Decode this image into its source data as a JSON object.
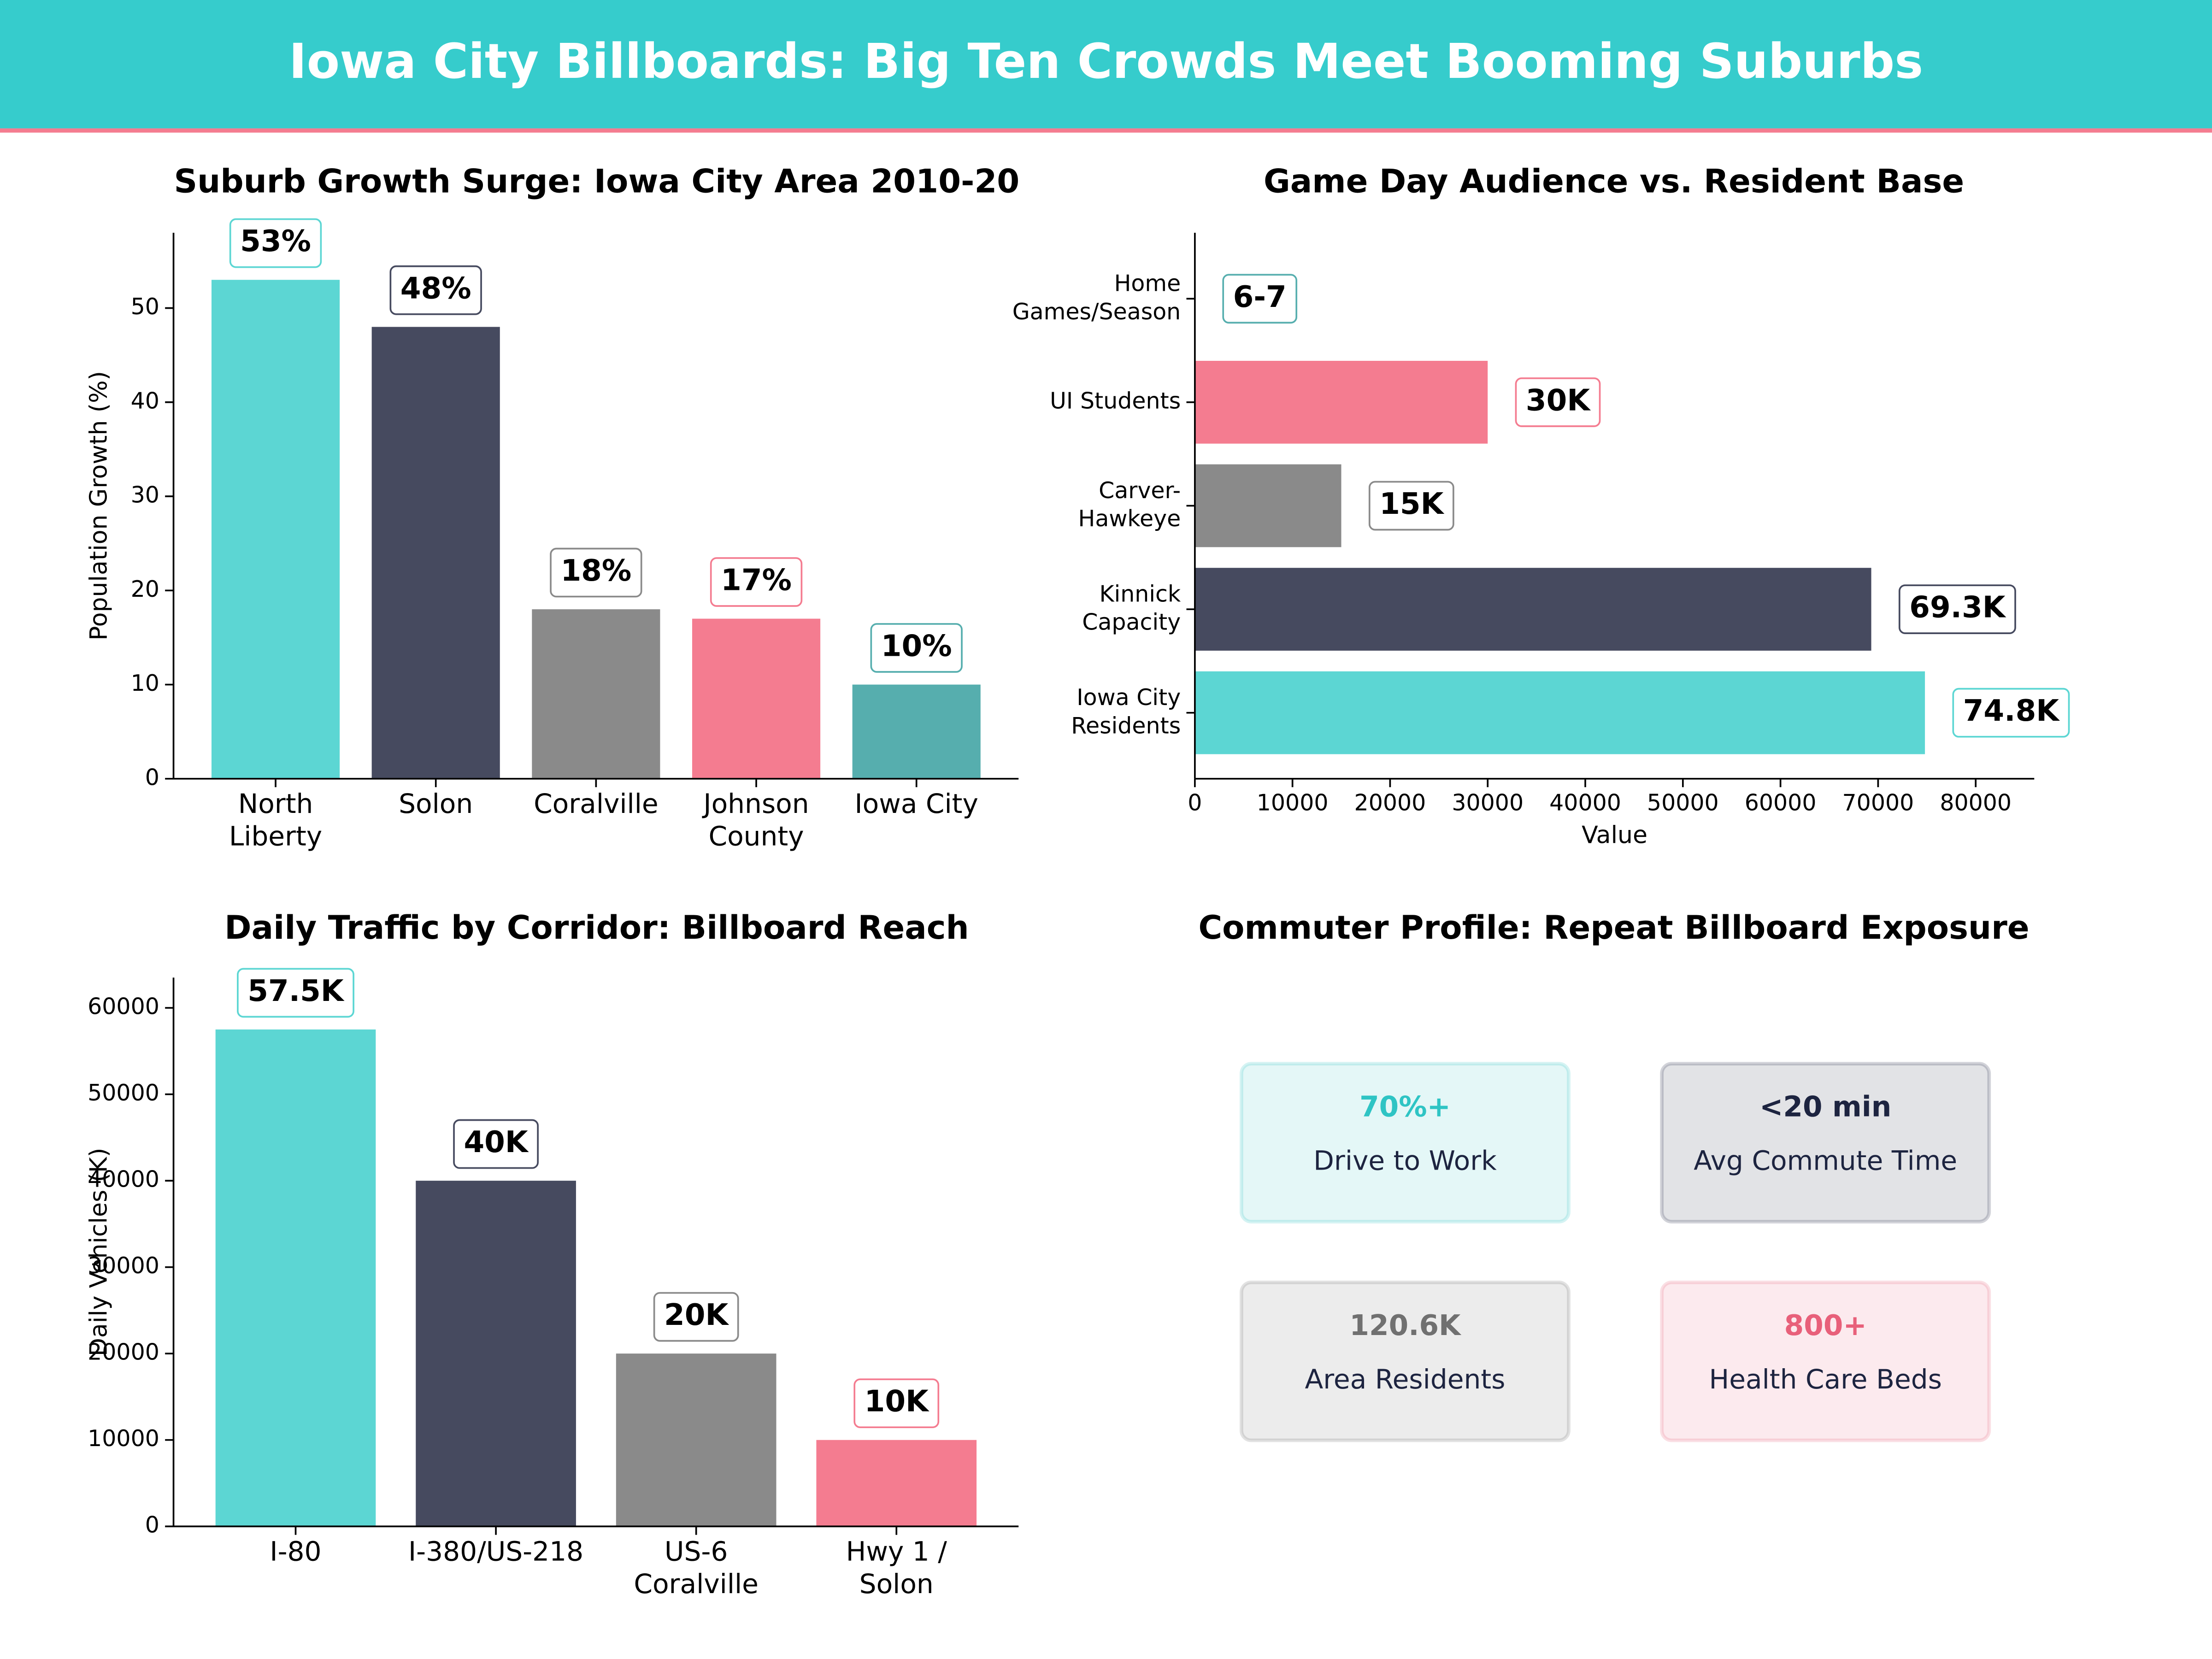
{
  "title": "Iowa City Billboards: Big Ten Crowds Meet Booming Suburbs",
  "chart_data": [
    {
      "type": "bar",
      "title": "Suburb Growth Surge: Iowa City Area 2010-20",
      "categories": [
        "North\nLiberty",
        "Solon",
        "Coralville",
        "Johnson\nCounty",
        "Iowa City"
      ],
      "values": [
        53,
        48,
        18,
        17,
        10
      ],
      "value_labels": [
        "53%",
        "48%",
        "18%",
        "17%",
        "10%"
      ],
      "colors": [
        "#5cd6d3",
        "#464a5f",
        "#8a8a8a",
        "#f47c90",
        "#56aeae"
      ],
      "ylabel": "Population Growth (%)",
      "ylim": [
        0,
        58
      ],
      "yticks": [
        0,
        10,
        20,
        30,
        40,
        50
      ]
    },
    {
      "type": "barh",
      "title": "Game Day Audience vs. Resident Base",
      "categories": [
        "Iowa City\nResidents",
        "Kinnick\nCapacity",
        "Carver-\nHawkeye",
        "UI Students",
        "Home\nGames/Season"
      ],
      "values": [
        74800,
        69300,
        15000,
        30000,
        7
      ],
      "value_labels": [
        "74.8K",
        "69.3K",
        "15K",
        "30K",
        "6-7"
      ],
      "colors": [
        "#5cd6d3",
        "#464a5f",
        "#8a8a8a",
        "#f47c90",
        "#56aeae"
      ],
      "xlabel": "Value",
      "xlim": [
        0,
        86000
      ],
      "xticks": [
        0,
        10000,
        20000,
        30000,
        40000,
        50000,
        60000,
        70000,
        80000
      ]
    },
    {
      "type": "bar",
      "title": "Daily Traffic by Corridor: Billboard Reach",
      "categories": [
        "I-80",
        "I-380/US-218",
        "US-6\nCoralville",
        "Hwy 1 /\nSolon"
      ],
      "values": [
        57500,
        40000,
        20000,
        10000
      ],
      "value_labels": [
        "57.5K",
        "40K",
        "20K",
        "10K"
      ],
      "colors": [
        "#5cd6d3",
        "#464a5f",
        "#8a8a8a",
        "#f47c90"
      ],
      "ylabel": "Daily Vehicles (K)",
      "ylim": [
        0,
        63500
      ],
      "yticks": [
        0,
        10000,
        20000,
        30000,
        40000,
        50000,
        60000
      ]
    }
  ],
  "kpi_panel": {
    "title": "Commuter Profile: Repeat Billboard Exposure",
    "cards": [
      {
        "value": "70%+",
        "label": "Drive to Work",
        "color": "#2ec4c4"
      },
      {
        "value": "<20 min",
        "label": "Avg Commute Time",
        "color": "#1d2440"
      },
      {
        "value": "120.6K",
        "label": "Area Residents",
        "color": "#707070"
      },
      {
        "value": "800+",
        "label": "Health Care Beds",
        "color": "#e8607a"
      }
    ]
  }
}
